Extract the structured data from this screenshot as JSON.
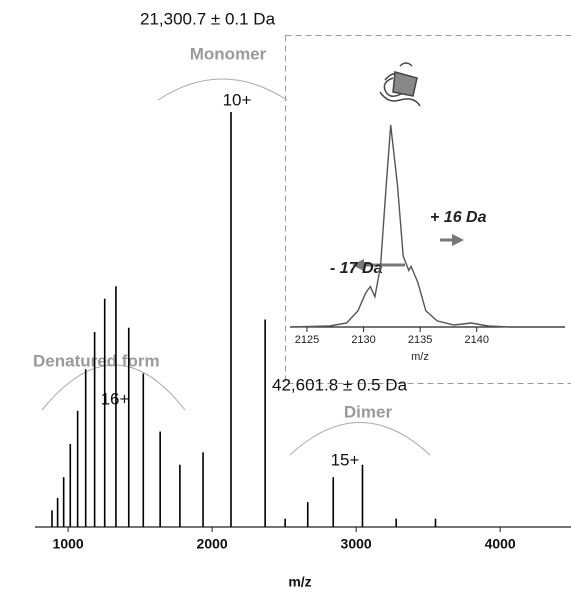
{
  "chart_data": [
    {
      "type": "stem",
      "x": [
        888,
        927,
        969,
        1015,
        1066,
        1122,
        1184,
        1254,
        1332,
        1421,
        1522,
        1639,
        1776,
        1937,
        2131,
        2368,
        2507,
        2664,
        2841,
        3044,
        3278,
        3551
      ],
      "values": [
        4,
        7,
        12,
        20,
        28,
        38,
        47,
        55,
        58,
        48,
        37,
        23,
        15,
        18,
        100,
        50,
        2,
        6,
        12,
        15,
        2,
        2
      ],
      "color": "#000000",
      "xlim": [
        770,
        4492
      ],
      "xticks": [
        1000,
        2000,
        3000,
        4000
      ],
      "ylim": [
        0,
        100
      ],
      "xlabel": "m/z",
      "annotations": [
        "21,300.7 ± 0.1 Da",
        "Monomer",
        "10+",
        "Denatured form",
        "16+",
        "42,601.8 ± 0.5 Da",
        "Dimer",
        "15+"
      ]
    },
    {
      "type": "line",
      "x": [
        2123.5,
        2127,
        2128.5,
        2129.5,
        2130.2,
        2130.6,
        2131,
        2131.5,
        2132,
        2132.4,
        2133,
        2133.5,
        2134,
        2134.2,
        2134.8,
        2135.5,
        2136.5,
        2138,
        2139.5,
        2141,
        2143,
        2147.8
      ],
      "values": [
        0,
        0.5,
        2,
        8,
        17,
        20,
        15,
        30,
        70,
        100,
        70,
        35,
        28,
        30,
        22,
        8,
        3,
        1,
        2,
        0.5,
        0,
        0
      ],
      "color": "#555555",
      "xlim": [
        2123.5,
        2147.8
      ],
      "xticks": [
        2125,
        2130,
        2135,
        2140
      ],
      "ylim": [
        0,
        100
      ],
      "xlabel": "m/z",
      "annotations": [
        "- 17 Da",
        "+ 16 Da"
      ]
    }
  ]
}
